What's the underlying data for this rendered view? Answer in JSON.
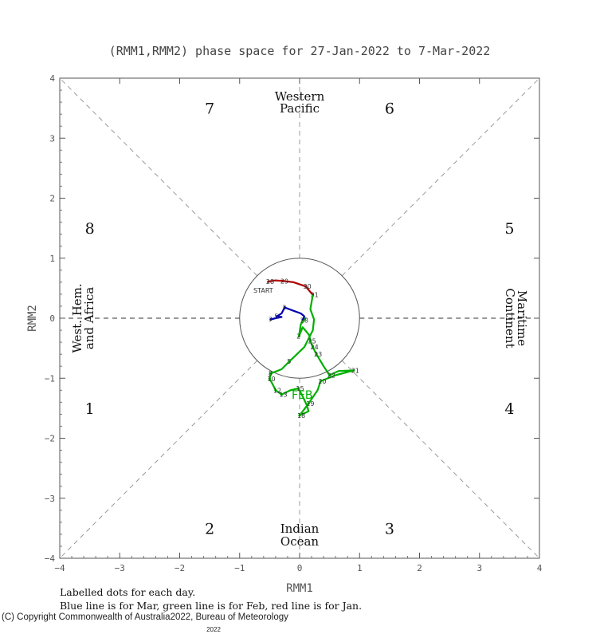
{
  "chart_data": {
    "type": "line",
    "title": "(RMM1,RMM2) phase space for 27-Jan-2022 to  7-Mar-2022",
    "xlabel": "RMM1",
    "ylabel": "RMM2",
    "xlim": [
      -4,
      4
    ],
    "ylim": [
      -4,
      4
    ],
    "xticks": [
      "−4",
      "−3",
      "−2",
      "−1",
      "0",
      "1",
      "2",
      "3",
      "4"
    ],
    "yticks": [
      "−4",
      "−3",
      "−2",
      "−1",
      "0",
      "1",
      "2",
      "3",
      "4"
    ],
    "phases": [
      "1",
      "2",
      "3",
      "4",
      "5",
      "6",
      "7",
      "8"
    ],
    "regions": {
      "top": [
        "Western",
        "Pacific"
      ],
      "bottom": [
        "Indian",
        "Ocean"
      ],
      "left": [
        "West. Hem.",
        "and Africa"
      ],
      "right": [
        "Maritime",
        "Continent"
      ]
    },
    "start_label": "START",
    "month_label": "FEB",
    "series": [
      {
        "name": "Jan",
        "color": "#b00000",
        "points": [
          {
            "day": "28",
            "x": -0.52,
            "y": 0.61
          },
          {
            "day": "",
            "x": -0.4,
            "y": 0.63
          },
          {
            "day": "29",
            "x": -0.28,
            "y": 0.62
          },
          {
            "day": "",
            "x": -0.1,
            "y": 0.6
          },
          {
            "day": "30",
            "x": 0.1,
            "y": 0.53
          },
          {
            "day": "31",
            "x": 0.22,
            "y": 0.39
          }
        ]
      },
      {
        "name": "Feb",
        "color": "#00b000",
        "points": [
          {
            "day": "",
            "x": 0.22,
            "y": 0.39
          },
          {
            "day": "",
            "x": 0.18,
            "y": 0.15
          },
          {
            "day": "",
            "x": 0.24,
            "y": -0.02
          },
          {
            "day": "",
            "x": 0.22,
            "y": -0.2
          },
          {
            "day": "",
            "x": 0.08,
            "y": -0.48
          },
          {
            "day": "5",
            "x": -0.17,
            "y": -0.72
          },
          {
            "day": "",
            "x": -0.3,
            "y": -0.85
          },
          {
            "day": "8",
            "x": -0.48,
            "y": -0.92
          },
          {
            "day": "10",
            "x": -0.5,
            "y": -1.01
          },
          {
            "day": "",
            "x": -0.45,
            "y": -1.1
          },
          {
            "day": "12",
            "x": -0.4,
            "y": -1.2
          },
          {
            "day": "13",
            "x": -0.3,
            "y": -1.27
          },
          {
            "day": "",
            "x": -0.15,
            "y": -1.2
          },
          {
            "day": "15",
            "x": -0.02,
            "y": -1.17
          },
          {
            "day": "",
            "x": 0.05,
            "y": -1.3
          },
          {
            "day": "",
            "x": 0.12,
            "y": -1.45
          },
          {
            "day": "",
            "x": 0.15,
            "y": -1.55
          },
          {
            "day": "18",
            "x": 0.0,
            "y": -1.62
          },
          {
            "day": "19",
            "x": 0.15,
            "y": -1.42
          },
          {
            "day": "",
            "x": 0.3,
            "y": -1.2
          },
          {
            "day": "20",
            "x": 0.35,
            "y": -1.05
          },
          {
            "day": "",
            "x": 0.6,
            "y": -0.95
          },
          {
            "day": "21",
            "x": 0.9,
            "y": -0.87
          },
          {
            "day": "",
            "x": 0.65,
            "y": -0.88
          },
          {
            "day": "22",
            "x": 0.5,
            "y": -0.95
          },
          {
            "day": "",
            "x": 0.4,
            "y": -0.8
          },
          {
            "day": "23",
            "x": 0.28,
            "y": -0.6
          },
          {
            "day": "24",
            "x": 0.22,
            "y": -0.48
          },
          {
            "day": "25",
            "x": 0.18,
            "y": -0.38
          },
          {
            "day": "",
            "x": 0.16,
            "y": -0.28
          },
          {
            "day": "",
            "x": 0.05,
            "y": -0.15
          },
          {
            "day": "2",
            "x": -0.01,
            "y": -0.3
          },
          {
            "day": "",
            "x": 0.02,
            "y": -0.1
          },
          {
            "day": "",
            "x": 0.1,
            "y": 0.0
          },
          {
            "day": "28",
            "x": 0.05,
            "y": -0.03
          }
        ]
      },
      {
        "name": "Mar",
        "color": "#0000b0",
        "points": [
          {
            "day": "",
            "x": 0.05,
            "y": -0.03
          },
          {
            "day": "",
            "x": 0.08,
            "y": 0.03
          },
          {
            "day": "",
            "x": 0.02,
            "y": 0.08
          },
          {
            "day": "",
            "x": -0.12,
            "y": 0.13
          },
          {
            "day": "3",
            "x": -0.25,
            "y": 0.18
          },
          {
            "day": "",
            "x": -0.3,
            "y": 0.08
          },
          {
            "day": "5",
            "x": -0.38,
            "y": 0.03
          },
          {
            "day": "",
            "x": -0.3,
            "y": 0.02
          },
          {
            "day": "",
            "x": -0.4,
            "y": 0.0
          },
          {
            "day": "7",
            "x": -0.48,
            "y": -0.02
          }
        ]
      }
    ]
  },
  "footer": {
    "line1": "Labelled dots for each day.",
    "line2": "Blue line is for Mar, green line is for Feb, red line is for Jan.",
    "copyright": "(C) Copyright Commonwealth of Australia",
    "copyright_year": "2022",
    "bureau": ", Bureau of Meteorology",
    "year_below": "2022"
  }
}
